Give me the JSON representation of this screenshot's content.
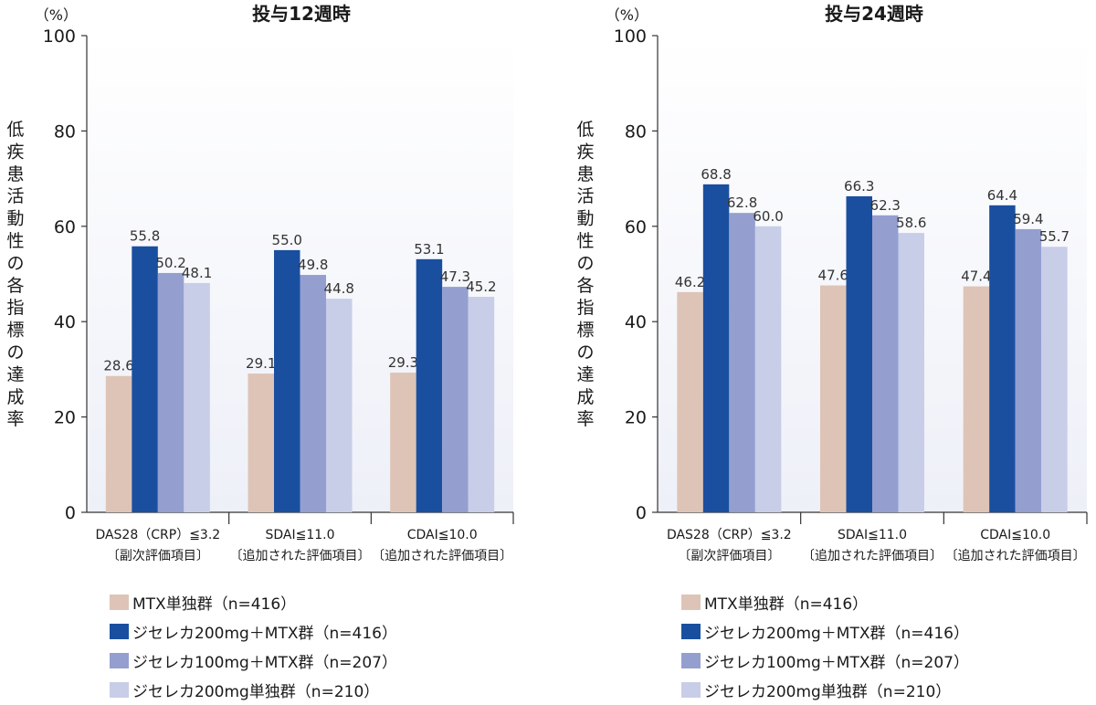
{
  "chart_data": [
    {
      "type": "bar",
      "title": "投与12週時",
      "unit_label": "（%）",
      "ylabel": "低疾患活動性の各指標の達成率",
      "ylim": [
        0,
        100
      ],
      "yticks": [
        0,
        20,
        40,
        60,
        80,
        100
      ],
      "categories": [
        {
          "label": "DAS28（CRP）≦3.2",
          "sublabel": "〔副次評価項目〕"
        },
        {
          "label": "SDAI≦11.0",
          "sublabel": "〔追加された評価項目〕"
        },
        {
          "label": "CDAI≦10.0",
          "sublabel": "〔追加された評価項目〕"
        }
      ],
      "series": [
        {
          "name": "MTX単独群（n=416）",
          "color": "#dec4b6",
          "values": [
            28.6,
            29.1,
            29.3
          ]
        },
        {
          "name": "ジセレカ200mg＋MTX群（n=416）",
          "color": "#1a4fa0",
          "values": [
            55.8,
            55.0,
            53.1
          ]
        },
        {
          "name": "ジセレカ100mg＋MTX群（n=207）",
          "color": "#949fd0",
          "values": [
            50.2,
            49.8,
            47.3
          ]
        },
        {
          "name": "ジセレカ200mg単独群（n=210）",
          "color": "#c8cde8",
          "values": [
            48.1,
            44.8,
            45.2
          ]
        }
      ],
      "grid": false,
      "legend": "bottom"
    },
    {
      "type": "bar",
      "title": "投与24週時",
      "unit_label": "（%）",
      "ylabel": "低疾患活動性の各指標の達成率",
      "ylim": [
        0,
        100
      ],
      "yticks": [
        0,
        20,
        40,
        60,
        80,
        100
      ],
      "categories": [
        {
          "label": "DAS28（CRP）≦3.2",
          "sublabel": "〔副次評価項目〕"
        },
        {
          "label": "SDAI≦11.0",
          "sublabel": "〔追加された評価項目〕"
        },
        {
          "label": "CDAI≦10.0",
          "sublabel": "〔追加された評価項目〕"
        }
      ],
      "series": [
        {
          "name": "MTX単独群（n=416）",
          "color": "#dec4b6",
          "values": [
            46.2,
            47.6,
            47.4
          ]
        },
        {
          "name": "ジセレカ200mg＋MTX群（n=416）",
          "color": "#1a4fa0",
          "values": [
            68.8,
            66.3,
            64.4
          ]
        },
        {
          "name": "ジセレカ100mg＋MTX群（n=207）",
          "color": "#949fd0",
          "values": [
            62.8,
            62.3,
            59.4
          ]
        },
        {
          "name": "ジセレカ200mg単独群（n=210）",
          "color": "#c8cde8",
          "values": [
            60.0,
            58.6,
            55.7
          ]
        }
      ],
      "grid": false,
      "legend": "bottom"
    }
  ],
  "legends": [
    {
      "items": [
        {
          "label": "MTX単独群（n=416）",
          "color": "#dec4b6"
        },
        {
          "label": "ジセレカ200mg＋MTX群（n=416）",
          "color": "#1a4fa0"
        },
        {
          "label": "ジセレカ100mg＋MTX群（n=207）",
          "color": "#949fd0"
        },
        {
          "label": "ジセレカ200mg単独群（n=210）",
          "color": "#c8cde8"
        }
      ]
    },
    {
      "items": [
        {
          "label": "MTX単独群（n=416）",
          "color": "#dec4b6"
        },
        {
          "label": "ジセレカ200mg＋MTX群（n=416）",
          "color": "#1a4fa0"
        },
        {
          "label": "ジセレカ100mg＋MTX群（n=207）",
          "color": "#949fd0"
        },
        {
          "label": "ジセレカ200mg単独群（n=210）",
          "color": "#c8cde8"
        }
      ]
    }
  ]
}
